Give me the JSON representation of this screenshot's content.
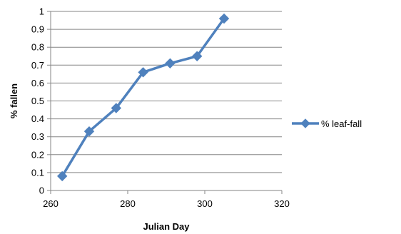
{
  "chart_data": {
    "type": "scatter",
    "mode": "lines+markers",
    "title": "",
    "xlabel": "Julian Day",
    "ylabel": "% fallen",
    "xlim": [
      260,
      320
    ],
    "ylim": [
      0,
      1
    ],
    "x_ticks": [
      260,
      280,
      300,
      320
    ],
    "y_ticks": [
      0,
      0.1,
      0.2,
      0.3,
      0.4,
      0.5,
      0.6,
      0.7,
      0.8,
      0.9,
      1
    ],
    "y_tick_labels": [
      "0",
      "0.1",
      "0.2",
      "0.3",
      "0.4",
      "0.5",
      "0.6",
      "0.7",
      "0.8",
      "0.9",
      "1"
    ],
    "x_tick_labels": [
      "260",
      "280",
      "300",
      "320"
    ],
    "grid": "horizontal",
    "legend_position": "right",
    "series": [
      {
        "name": "% leaf-fall",
        "color": "#4F81BD",
        "marker": "diamond",
        "x": [
          263,
          270,
          277,
          284,
          291,
          298,
          305
        ],
        "y": [
          0.08,
          0.33,
          0.46,
          0.66,
          0.71,
          0.75,
          0.96
        ]
      }
    ]
  }
}
